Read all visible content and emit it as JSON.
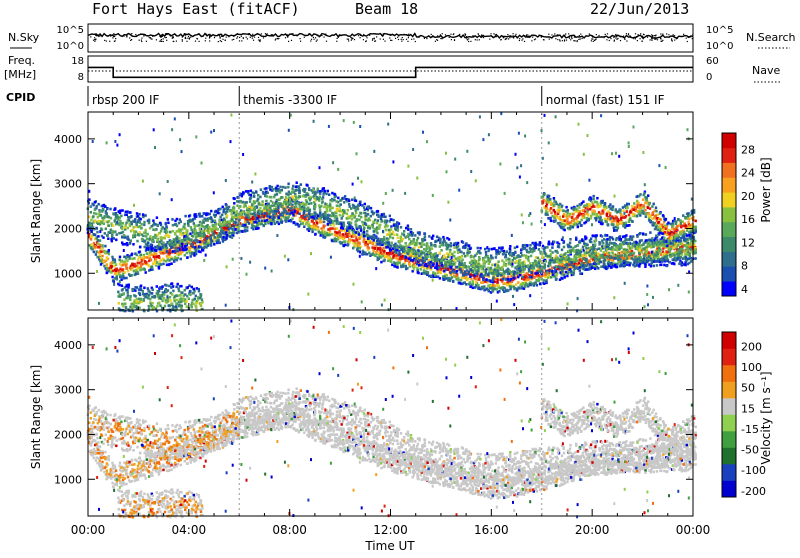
{
  "header": {
    "station": "Fort Hays East (fitACF)",
    "beam": "Beam 18",
    "date": "22/Jun/2013"
  },
  "top_panels": {
    "nsky_label": "N.Sky",
    "nsearch_label": "N.Search",
    "nsky_ticks": [
      "10^5",
      "10^0"
    ],
    "nsearch_ticks": [
      "10^5",
      "10^0"
    ],
    "freq_label_1": "Freq.",
    "freq_label_2": "[MHz]",
    "freq_ticks": [
      "18",
      "8"
    ],
    "nave_ticks": [
      "60",
      "0"
    ],
    "nave_label": "Nave",
    "cpid_label": "CPID",
    "cpid_modes": [
      {
        "label": "rbsp 200 IF",
        "start_hour": 0
      },
      {
        "label": "themis -3300 IF",
        "start_hour": 6
      },
      {
        "label": "normal (fast) 151 IF",
        "start_hour": 18
      }
    ],
    "freq_steps": [
      {
        "start": 0,
        "end": 1,
        "level": 15
      },
      {
        "start": 1,
        "end": 13,
        "level": 9.5
      },
      {
        "start": 13,
        "end": 24,
        "level": 15
      }
    ]
  },
  "chart_data": [
    {
      "type": "heatmap",
      "name": "power",
      "ylabel": "Slant Range [km]",
      "xlabel": "Time UT",
      "xlim": [
        0,
        24
      ],
      "ylim": [
        180,
        4600
      ],
      "yticks": [
        1000,
        2000,
        3000,
        4000
      ],
      "xtick_labels": [
        "00:00",
        "04:00",
        "08:00",
        "12:00",
        "16:00",
        "20:00",
        "00:00"
      ],
      "colorbar": {
        "label": "Power [dB]",
        "ticks": [
          "28",
          "24",
          "20",
          "16",
          "12",
          "8",
          "4"
        ],
        "colors": [
          "#0000ff",
          "#1a4fb0",
          "#2f6e8c",
          "#3c8a6a",
          "#5aa85a",
          "#88c040",
          "#f0d020",
          "#f8a020",
          "#f07020",
          "#e02010",
          "#d00000"
        ]
      },
      "bands": [
        {
          "t": [
            0,
            1,
            2,
            4,
            6,
            8,
            9,
            12,
            16,
            17,
            19,
            20,
            22,
            24
          ],
          "r": [
            1850,
            1100,
            1250,
            1650,
            2200,
            2450,
            2150,
            1450,
            850,
            900,
            1200,
            1350,
            1500,
            1600
          ],
          "core": "strong"
        },
        {
          "t": [
            0,
            1,
            3,
            5,
            6,
            8,
            9,
            11,
            13,
            16,
            18,
            20,
            22,
            24
          ],
          "r": [
            2300,
            2100,
            1850,
            2050,
            2450,
            2700,
            2600,
            2200,
            1600,
            1200,
            1350,
            1500,
            1550,
            1600
          ],
          "core": "weak"
        },
        {
          "t": [
            18,
            19,
            20,
            21,
            22,
            23,
            24
          ],
          "r": [
            2600,
            2200,
            2500,
            2200,
            2600,
            1900,
            2200
          ],
          "core": "strong"
        },
        {
          "t": [
            1.2,
            2.5,
            3.5,
            4.5
          ],
          "r": [
            420,
            350,
            450,
            300
          ],
          "core": "weak"
        }
      ]
    },
    {
      "type": "heatmap",
      "name": "velocity",
      "ylabel": "Slant Range [km]",
      "xlabel": "Time UT",
      "xlim": [
        0,
        24
      ],
      "ylim": [
        180,
        4600
      ],
      "yticks": [
        1000,
        2000,
        3000,
        4000
      ],
      "xtick_labels": [
        "00:00",
        "04:00",
        "08:00",
        "12:00",
        "16:00",
        "20:00",
        "00:00"
      ],
      "colorbar": {
        "label": "Velocity [m s⁻¹]",
        "ticks": [
          "200",
          "100",
          "50",
          "15",
          "-15",
          "-50",
          "-100",
          "-200"
        ],
        "colors": [
          "#0000d0",
          "#1a40c0",
          "#207030",
          "#40a040",
          "#90d050",
          "#c8c8c8",
          "#f0a020",
          "#f07010",
          "#e02010",
          "#d00000"
        ]
      }
    }
  ],
  "footer": {
    "xlabel": "Time UT"
  }
}
